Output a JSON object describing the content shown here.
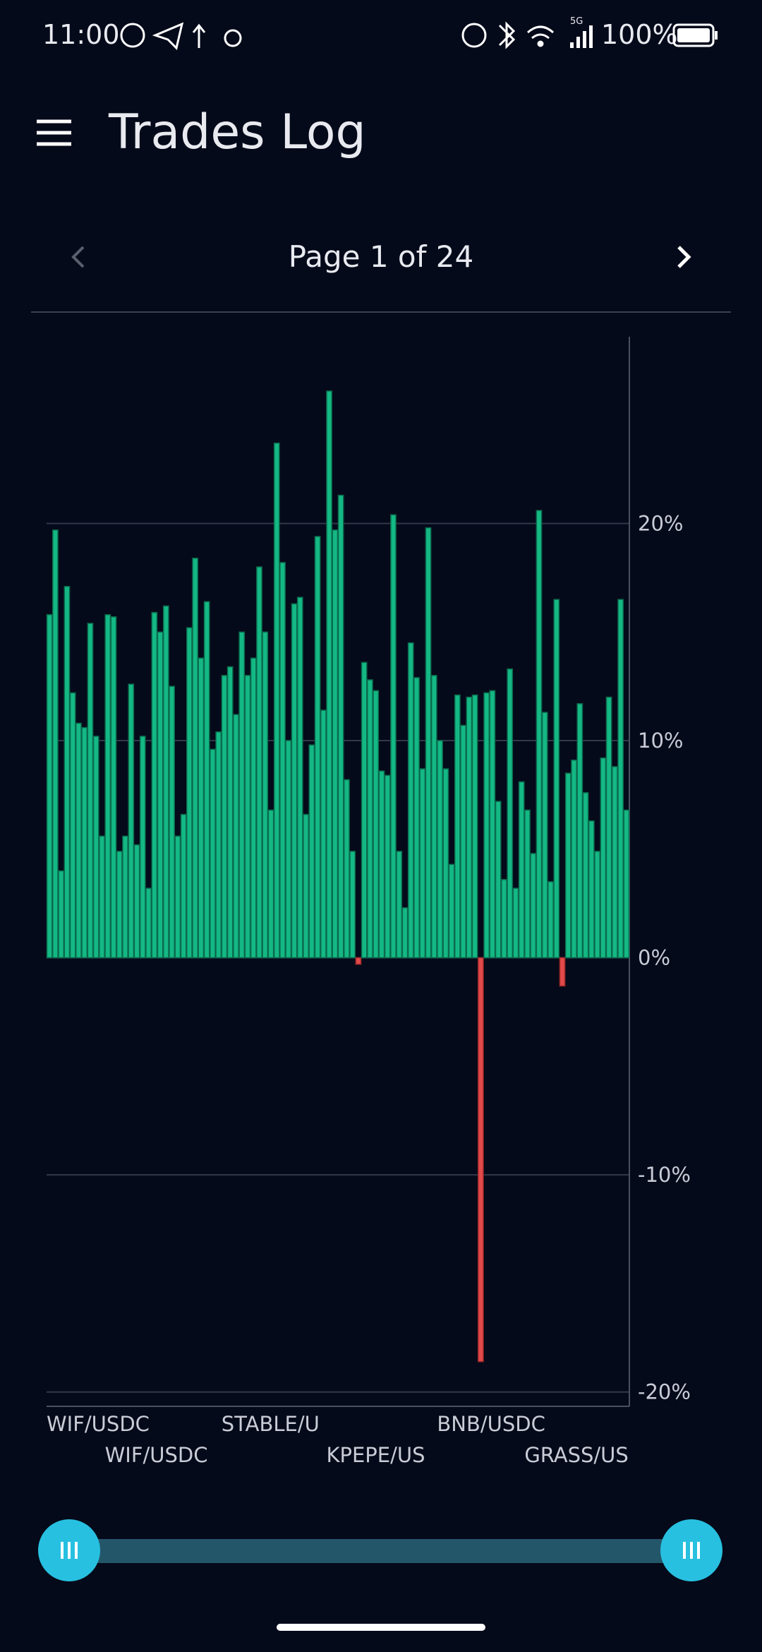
{
  "status_bar": {
    "time": "11:00",
    "network": "5G",
    "battery": "100%"
  },
  "app_bar": {
    "title": "Trades Log"
  },
  "pager": {
    "label": "Page 1 of 24"
  },
  "chart_data": {
    "type": "bar",
    "categories": [
      "WIF/USDC",
      null,
      null,
      null,
      null,
      null,
      null,
      null,
      null,
      null,
      "WIF/USDC",
      null,
      null,
      null,
      null,
      null,
      null,
      null,
      null,
      null,
      null,
      null,
      null,
      null,
      null,
      null,
      null,
      null,
      null,
      null,
      "STABLE/U",
      null,
      null,
      null,
      null,
      null,
      null,
      null,
      null,
      null,
      null,
      null,
      null,
      null,
      null,
      null,
      null,
      null,
      "KPEPE/US",
      null,
      null,
      null,
      null,
      null,
      null,
      null,
      null,
      null,
      null,
      null,
      null,
      null,
      null,
      null,
      null,
      null,
      null,
      "BNB/USDC",
      null,
      null,
      null,
      null,
      null,
      null,
      null,
      null,
      null,
      null,
      null,
      null,
      null,
      null,
      "GRASS/US",
      null,
      null,
      null,
      null,
      null,
      null,
      null,
      null,
      null,
      null,
      null,
      null,
      null,
      null,
      null,
      null,
      null
    ],
    "values": [
      15.8,
      19.7,
      4.0,
      17.1,
      12.2,
      10.8,
      10.6,
      15.4,
      10.2,
      5.6,
      15.8,
      15.7,
      4.9,
      5.6,
      12.6,
      5.2,
      10.2,
      3.2,
      15.9,
      15.0,
      16.2,
      12.5,
      5.6,
      6.6,
      15.2,
      18.4,
      13.8,
      16.4,
      9.6,
      10.4,
      13.0,
      13.4,
      11.2,
      15.0,
      13.0,
      13.8,
      18.0,
      15.0,
      6.8,
      23.7,
      18.2,
      10.0,
      16.3,
      16.6,
      6.6,
      9.8,
      19.4,
      11.4,
      26.1,
      19.7,
      21.3,
      8.2,
      4.9,
      -0.3,
      13.6,
      12.8,
      12.3,
      8.6,
      8.4,
      20.4,
      4.9,
      2.3,
      14.5,
      12.9,
      8.7,
      19.8,
      13.0,
      10.0,
      8.7,
      4.3,
      12.1,
      10.7,
      12.0,
      12.1,
      -18.6,
      12.2,
      12.3,
      7.2,
      3.6,
      13.3,
      3.2,
      8.1,
      6.8,
      4.8,
      20.6,
      11.3,
      3.5,
      16.5,
      -1.3,
      8.5,
      9.1,
      11.7,
      7.6,
      6.3,
      4.9,
      9.2,
      12.0,
      8.8,
      16.5,
      6.8
    ],
    "colors": {
      "positive": "#14b884",
      "negative": "#e04a4a"
    },
    "ylim": [
      -20.4,
      28.6
    ],
    "yticks": [
      {
        "value": -20,
        "label": "-20%"
      },
      {
        "value": -10,
        "label": "-10%"
      },
      {
        "value": 0,
        "label": "0%"
      },
      {
        "value": 10,
        "label": "10%"
      },
      {
        "value": 20,
        "label": "20%"
      }
    ],
    "grid": true,
    "y_axis_side": "right"
  }
}
